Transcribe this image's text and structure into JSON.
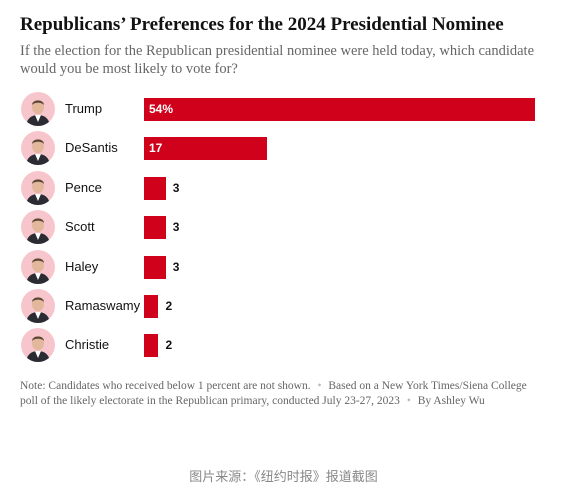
{
  "chart_data": {
    "type": "bar",
    "orientation": "horizontal",
    "title": "Republicans’ Preferences for the 2024 Presidential Nominee",
    "subtitle": "If the election for the Republican presidential nominee were held today, which candidate would you be most likely to vote for?",
    "categories": [
      "Trump",
      "DeSantis",
      "Pence",
      "Scott",
      "Haley",
      "Ramaswamy",
      "Christie"
    ],
    "values": [
      54,
      17,
      3,
      3,
      3,
      2,
      2
    ],
    "value_labels": [
      "54%",
      "17",
      "3",
      "3",
      "3",
      "2",
      "2"
    ],
    "unit": "percent",
    "xlim": [
      0,
      54
    ],
    "bar_color": "#d0021b",
    "grid": false,
    "legend": "none"
  },
  "note": {
    "part1": "Note: Candidates who received below 1 percent are not shown.",
    "part2": "Based on a New York Times/Siena College poll of the likely electorate in the Republican primary, conducted July 23-27, 2023",
    "part3": "By Ashley Wu",
    "separator": "•"
  },
  "source_caption": "图片来源：《纽约时报》报道截图",
  "colors": {
    "bar": "#d0021b",
    "avatar_background": "#f7c6cc",
    "title": "#121212",
    "subtitle": "#666666"
  }
}
